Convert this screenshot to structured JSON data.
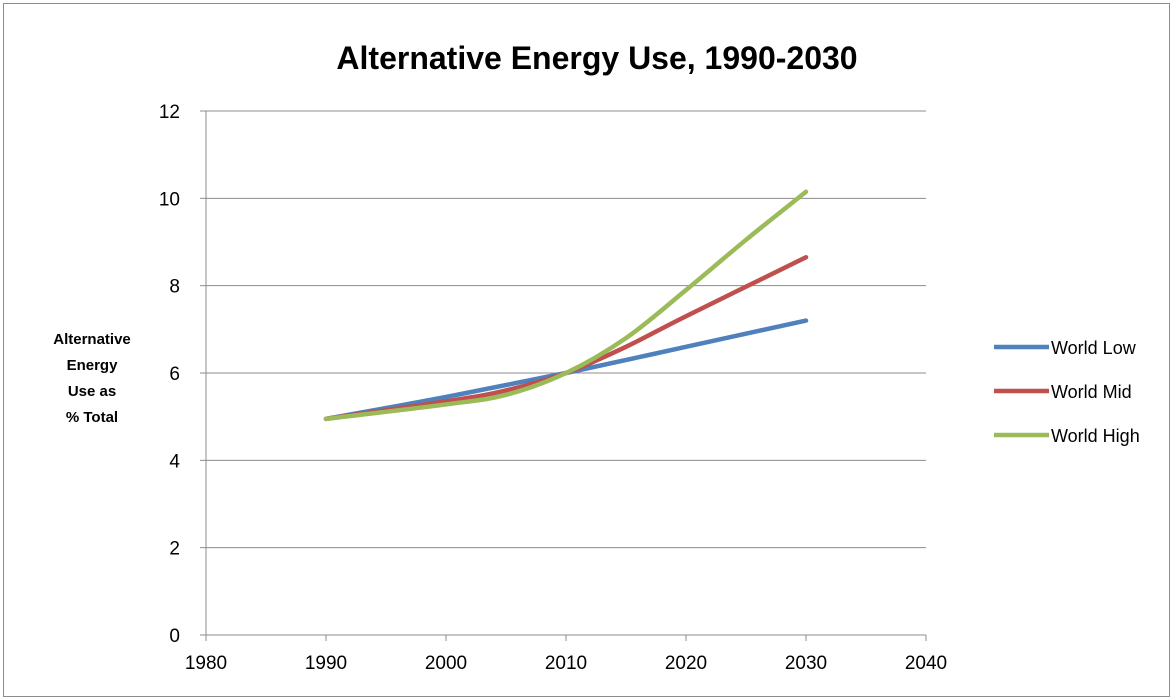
{
  "chart_data": {
    "type": "line",
    "title": "Alternative Energy Use, 1990-2030",
    "ylabel": [
      "Alternative",
      "Energy",
      "Use as",
      "% Total"
    ],
    "xlabel": "",
    "xlim": [
      1980,
      2040
    ],
    "ylim": [
      0,
      12
    ],
    "x_ticks": [
      "1980",
      "1990",
      "2000",
      "2010",
      "2020",
      "2030",
      "2040"
    ],
    "y_ticks": [
      "0",
      "2",
      "4",
      "6",
      "8",
      "10",
      "12"
    ],
    "grid": "horizontal",
    "legend_position": "right",
    "series": [
      {
        "name": "World Low",
        "color": "#4F81BD",
        "x": [
          1990,
          2000,
          2010,
          2020,
          2030
        ],
        "y": [
          4.95,
          5.45,
          6.0,
          6.6,
          7.2
        ]
      },
      {
        "name": "World Mid",
        "color": "#C0504D",
        "x": [
          1990,
          2000,
          2005,
          2010,
          2015,
          2020,
          2030
        ],
        "y": [
          4.95,
          5.35,
          5.6,
          6.0,
          6.6,
          7.3,
          8.65
        ]
      },
      {
        "name": "World High",
        "color": "#9BBB59",
        "x": [
          1990,
          2000,
          2005,
          2010,
          2015,
          2020,
          2025,
          2030
        ],
        "y": [
          4.95,
          5.28,
          5.5,
          6.0,
          6.8,
          7.9,
          9.05,
          10.15
        ]
      }
    ]
  }
}
